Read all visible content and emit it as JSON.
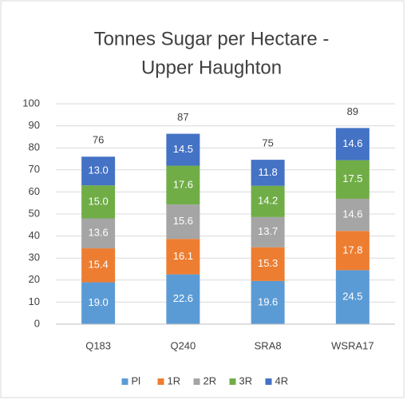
{
  "chart_data": {
    "type": "stacked_bar",
    "title": [
      "Tonnes Sugar per Hectare -",
      "Upper Haughton"
    ],
    "categories": [
      "Q183",
      "Q240",
      "SRA8",
      "WSRA17"
    ],
    "series": [
      {
        "name": "Pl",
        "color": "#5b9bd5",
        "values": [
          19.0,
          22.6,
          19.6,
          24.5
        ],
        "value_labels": [
          "19.0",
          "22.6",
          "19.6",
          "24.5"
        ]
      },
      {
        "name": "1R",
        "color": "#ed7d31",
        "values": [
          15.4,
          16.1,
          15.3,
          17.8
        ],
        "value_labels": [
          "15.4",
          "16.1",
          "15.3",
          "17.8"
        ]
      },
      {
        "name": "2R",
        "color": "#a5a5a5",
        "values": [
          13.6,
          15.6,
          13.7,
          14.6
        ],
        "value_labels": [
          "13.6",
          "15.6",
          "13.7",
          "14.6"
        ]
      },
      {
        "name": "3R",
        "color": "#70ad47",
        "values": [
          15.0,
          17.6,
          14.2,
          17.5
        ],
        "value_labels": [
          "15.0",
          "17.6",
          "14.2",
          "17.5"
        ]
      },
      {
        "name": "4R",
        "color": "#4472c4",
        "values": [
          13.0,
          14.5,
          11.8,
          14.6
        ],
        "value_labels": [
          "13.0",
          "14.5",
          "11.8",
          "14.6"
        ]
      }
    ],
    "totals": [
      76,
      87,
      75,
      89
    ],
    "ylim": [
      0,
      100
    ],
    "yticks": [
      0,
      10,
      20,
      30,
      40,
      50,
      60,
      70,
      80,
      90,
      100
    ],
    "grid": true,
    "legend": "bottom"
  }
}
